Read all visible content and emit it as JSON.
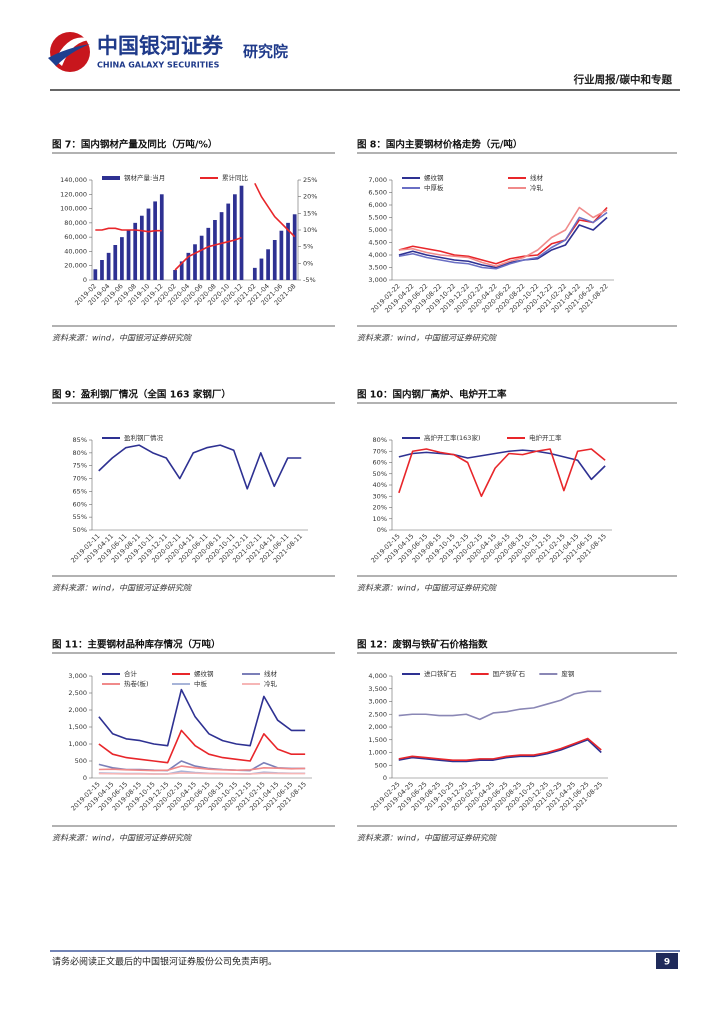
{
  "header": {
    "brand": "中国银河证券",
    "brand_en": "CHINA GALAXY SECURITIES",
    "institute": "研究院",
    "report_type": "行业周报/碳中和专题"
  },
  "chart_data": [
    {
      "type": "bar",
      "title": "图 7：国内钢材产量及同比（万吨/%）",
      "source": "资料来源：wind，中国银河证券研究院",
      "categories": [
        "2019-02",
        null,
        "2019-04",
        null,
        "2019-06",
        null,
        "2019-08",
        null,
        "2019-10",
        null,
        "2019-12",
        null,
        "2020-02",
        null,
        "2020-04",
        null,
        "2020-06",
        null,
        "2020-08",
        null,
        "2020-10",
        null,
        "2020-12",
        null,
        "2021-02",
        null,
        "2021-04",
        null,
        "2021-06",
        null,
        "2021-08"
      ],
      "series": [
        {
          "name": "钢材产量:当月",
          "color": "#2e3192",
          "values": [
            15000,
            28000,
            38000,
            49000,
            60000,
            70000,
            80000,
            90000,
            100000,
            110000,
            120000,
            null,
            14000,
            26000,
            38000,
            50000,
            62000,
            73000,
            84000,
            95000,
            107000,
            120000,
            132000,
            null,
            17000,
            30000,
            43000,
            56000,
            69000,
            80000,
            92000
          ]
        },
        {
          "name": "累计同比",
          "color": "#e8262a",
          "type": "line",
          "axis": "y2",
          "values": [
            10,
            10,
            10.5,
            10.5,
            10,
            10,
            10,
            9.8,
            9.5,
            9.8,
            9.8,
            null,
            -2,
            0,
            2,
            3,
            4,
            5,
            5.5,
            6,
            6.5,
            7,
            7.7,
            null,
            24,
            20,
            17,
            14,
            12,
            10,
            8
          ]
        }
      ],
      "ylim": [
        0,
        140000
      ],
      "yticks": [
        0,
        {
          "value": 20000,
          "label": "20,000"
        },
        {
          "value": 40000,
          "label": "40,000"
        },
        {
          "value": 60000,
          "label": "60,000"
        },
        {
          "value": 80000,
          "label": "80,000"
        },
        {
          "value": 100000,
          "label": "100,000"
        },
        {
          "value": 120000,
          "label": "120,000"
        },
        {
          "value": 140000,
          "label": "140,000"
        }
      ],
      "y2lim": [
        -5,
        25
      ],
      "y2ticks": [
        {
          "value": -5,
          "label": "-5%"
        },
        {
          "value": 0,
          "label": "0%"
        },
        {
          "value": 5,
          "label": "5%"
        },
        {
          "value": 10,
          "label": "10%"
        },
        {
          "value": 15,
          "label": "15%"
        },
        {
          "value": 20,
          "label": "20%"
        },
        {
          "value": 25,
          "label": "25%"
        }
      ]
    },
    {
      "type": "line",
      "title": "图 8：国内主要钢材价格走势（元/吨）",
      "source": "资料来源：wind，中国银河证券研究院",
      "categories": [
        "2019-02-22",
        "2019-04-22",
        "2019-06-22",
        "2019-08-22",
        "2019-10-22",
        "2019-12-22",
        "2020-02-22",
        "2020-04-22",
        "2020-06-22",
        "2020-08-22",
        "2020-10-22",
        "2020-12-22",
        "2021-02-22",
        "2021-04-22",
        "2021-06-22",
        "2021-08-22"
      ],
      "series": [
        {
          "name": "螺纹钢",
          "color": "#2e3192",
          "values": [
            4000,
            4150,
            4000,
            3900,
            3800,
            3750,
            3600,
            3500,
            3700,
            3800,
            3850,
            4200,
            4400,
            5200,
            5000,
            5500
          ]
        },
        {
          "name": "线材",
          "color": "#e8262a",
          "values": [
            4200,
            4350,
            4250,
            4150,
            4000,
            3950,
            3800,
            3650,
            3850,
            3950,
            4000,
            4450,
            4600,
            5400,
            5300,
            5900
          ]
        },
        {
          "name": "中厚板",
          "color": "#6a6fc4",
          "values": [
            3950,
            4050,
            3900,
            3800,
            3700,
            3650,
            3500,
            3450,
            3650,
            3800,
            3900,
            4300,
            4600,
            5500,
            5300,
            5700
          ]
        },
        {
          "name": "冷轧",
          "color": "#f08a8a",
          "values": [
            4200,
            4250,
            4100,
            4000,
            3950,
            3900,
            3700,
            3550,
            3750,
            3900,
            4200,
            4700,
            5000,
            5900,
            5500,
            5800
          ]
        }
      ],
      "ylim": [
        3000,
        7000
      ],
      "yticks": [
        {
          "value": 3000,
          "label": "3,000"
        },
        {
          "value": 3500,
          "label": "3,500"
        },
        {
          "value": 4000,
          "label": "4,000"
        },
        {
          "value": 4500,
          "label": "4,500"
        },
        {
          "value": 5000,
          "label": "5,000"
        },
        {
          "value": 5500,
          "label": "5,500"
        },
        {
          "value": 6000,
          "label": "6,000"
        },
        {
          "value": 6500,
          "label": "6,500"
        },
        {
          "value": 7000,
          "label": "7,000"
        }
      ]
    },
    {
      "type": "line",
      "title": "图 9：盈利钢厂情况（全国 163 家钢厂）",
      "source": "资料来源：wind，中国银河证券研究院",
      "categories": [
        "2019-02-11",
        "2019-04-11",
        "2019-06-11",
        "2019-08-11",
        "2019-10-11",
        "2019-12-11",
        "2020-02-11",
        "2020-04-11",
        "2020-06-11",
        "2020-08-11",
        "2020-10-11",
        "2020-12-11",
        "2021-02-11",
        "2021-04-11",
        "2021-06-11",
        "2021-08-11"
      ],
      "series": [
        {
          "name": "盈利钢厂情况",
          "color": "#2e3192",
          "values": [
            73,
            78,
            82,
            83,
            80,
            78,
            70,
            80,
            82,
            83,
            81,
            66,
            80,
            67,
            78,
            78
          ]
        }
      ],
      "ylim": [
        50,
        85
      ],
      "yticks": [
        {
          "value": 50,
          "label": "50%"
        },
        {
          "value": 55,
          "label": "55%"
        },
        {
          "value": 60,
          "label": "60%"
        },
        {
          "value": 65,
          "label": "65%"
        },
        {
          "value": 70,
          "label": "70%"
        },
        {
          "value": 75,
          "label": "75%"
        },
        {
          "value": 80,
          "label": "80%"
        },
        {
          "value": 85,
          "label": "85%"
        }
      ]
    },
    {
      "type": "line",
      "title": "图 10：国内钢厂高炉、电炉开工率",
      "source": "资料来源：wind，中国银河证券研究院",
      "categories": [
        "2019-02-15",
        "2019-04-15",
        "2019-06-15",
        "2019-08-15",
        "2019-10-15",
        "2019-12-15",
        "2020-02-15",
        "2020-04-15",
        "2020-06-15",
        "2020-08-15",
        "2020-10-15",
        "2020-12-15",
        "2021-02-15",
        "2021-04-15",
        "2021-06-15",
        "2021-08-15"
      ],
      "series": [
        {
          "name": "高炉开工率(163家)",
          "color": "#2e3192",
          "values": [
            65,
            68,
            69,
            68,
            67,
            64,
            66,
            68,
            70,
            71,
            70,
            68,
            65,
            62,
            45,
            57
          ]
        },
        {
          "name": "电炉开工率",
          "color": "#e8262a",
          "values": [
            33,
            70,
            72,
            69,
            67,
            60,
            30,
            55,
            68,
            67,
            70,
            72,
            35,
            70,
            72,
            62
          ]
        }
      ],
      "ylim": [
        0,
        80
      ],
      "yticks": [
        {
          "value": 0,
          "label": "0%"
        },
        {
          "value": 10,
          "label": "10%"
        },
        {
          "value": 20,
          "label": "20%"
        },
        {
          "value": 30,
          "label": "30%"
        },
        {
          "value": 40,
          "label": "40%"
        },
        {
          "value": 50,
          "label": "50%"
        },
        {
          "value": 60,
          "label": "60%"
        },
        {
          "value": 70,
          "label": "70%"
        },
        {
          "value": 80,
          "label": "80%"
        }
      ]
    },
    {
      "type": "line",
      "title": "图 11：主要钢材品种库存情况（万吨）",
      "source": "资料来源：wind，中国银河证券研究院",
      "categories": [
        "2019-02-15",
        "2019-04-15",
        "2019-06-15",
        "2019-08-15",
        "2019-10-15",
        "2019-12-15",
        "2020-02-15",
        "2020-04-15",
        "2020-06-15",
        "2020-08-15",
        "2020-10-15",
        "2020-12-15",
        "2021-02-15",
        "2021-04-15",
        "2021-06-15",
        "2021-08-15"
      ],
      "series": [
        {
          "name": "合计",
          "color": "#2e3192",
          "values": [
            1800,
            1300,
            1150,
            1100,
            1000,
            950,
            2600,
            1800,
            1300,
            1100,
            1000,
            950,
            2400,
            1700,
            1400,
            1400
          ]
        },
        {
          "name": "螺纹钢",
          "color": "#e8262a",
          "values": [
            1000,
            700,
            600,
            550,
            500,
            450,
            1400,
            950,
            700,
            600,
            550,
            500,
            1300,
            850,
            700,
            700
          ]
        },
        {
          "name": "线材",
          "color": "#7b7fb8",
          "values": [
            400,
            300,
            250,
            250,
            230,
            220,
            500,
            350,
            280,
            250,
            230,
            220,
            450,
            300,
            280,
            280
          ]
        },
        {
          "name": "热卷(板)",
          "color": "#f08a8a",
          "values": [
            250,
            260,
            240,
            230,
            220,
            230,
            350,
            300,
            260,
            240,
            230,
            240,
            300,
            290,
            270,
            280
          ]
        },
        {
          "name": "中板",
          "color": "#a7b4d8",
          "values": [
            150,
            140,
            130,
            130,
            120,
            120,
            200,
            160,
            140,
            130,
            125,
            120,
            170,
            150,
            140,
            140
          ]
        },
        {
          "name": "冷轧",
          "color": "#f6b6b6",
          "values": [
            130,
            125,
            120,
            120,
            115,
            118,
            150,
            140,
            130,
            125,
            120,
            118,
            140,
            135,
            130,
            130
          ]
        }
      ],
      "ylim": [
        0,
        3000
      ],
      "yticks": [
        0,
        500,
        {
          "value": 1000,
          "label": "1,000"
        },
        {
          "value": 1500,
          "label": "1,500"
        },
        {
          "value": 2000,
          "label": "2,000"
        },
        {
          "value": 2500,
          "label": "2,500"
        },
        {
          "value": 3000,
          "label": "3,000"
        }
      ]
    },
    {
      "type": "line",
      "title": "图 12：废钢与铁矿石价格指数",
      "source": "资料来源：wind，中国银河证券研究院",
      "categories": [
        "2019-02-25",
        "2019-04-25",
        "2019-06-25",
        "2019-08-25",
        "2019-10-25",
        "2019-12-25",
        "2020-02-25",
        "2020-04-25",
        "2020-06-25",
        "2020-08-25",
        "2020-10-25",
        "2020-12-25",
        "2021-02-25",
        "2021-04-25",
        "2021-06-25",
        "2021-08-25"
      ],
      "series": [
        {
          "name": "进口铁矿石",
          "color": "#2e3192",
          "values": [
            700,
            800,
            750,
            700,
            650,
            650,
            700,
            700,
            800,
            850,
            850,
            950,
            1100,
            1300,
            1500,
            1000
          ]
        },
        {
          "name": "国产铁矿石",
          "color": "#e8262a",
          "values": [
            750,
            850,
            800,
            750,
            700,
            700,
            750,
            750,
            850,
            900,
            900,
            1000,
            1150,
            1350,
            1550,
            1100
          ]
        },
        {
          "name": "废钢",
          "color": "#8a87b5",
          "values": [
            2450,
            2500,
            2500,
            2450,
            2450,
            2500,
            2300,
            2550,
            2600,
            2700,
            2750,
            2900,
            3050,
            3300,
            3400,
            3400
          ]
        }
      ],
      "ylim": [
        0,
        4000
      ],
      "yticks": [
        0,
        500,
        {
          "value": 1000,
          "label": "1,000"
        },
        {
          "value": 1500,
          "label": "1,500"
        },
        {
          "value": 2000,
          "label": "2,000"
        },
        {
          "value": 2500,
          "label": "2,500"
        },
        {
          "value": 3000,
          "label": "3,000"
        },
        {
          "value": 3500,
          "label": "3,500"
        },
        {
          "value": 4000,
          "label": "4,000"
        }
      ]
    }
  ],
  "footer": {
    "disclaimer": "请务必阅读正文最后的中国银河证券股份公司免责声明。",
    "page": "9"
  }
}
